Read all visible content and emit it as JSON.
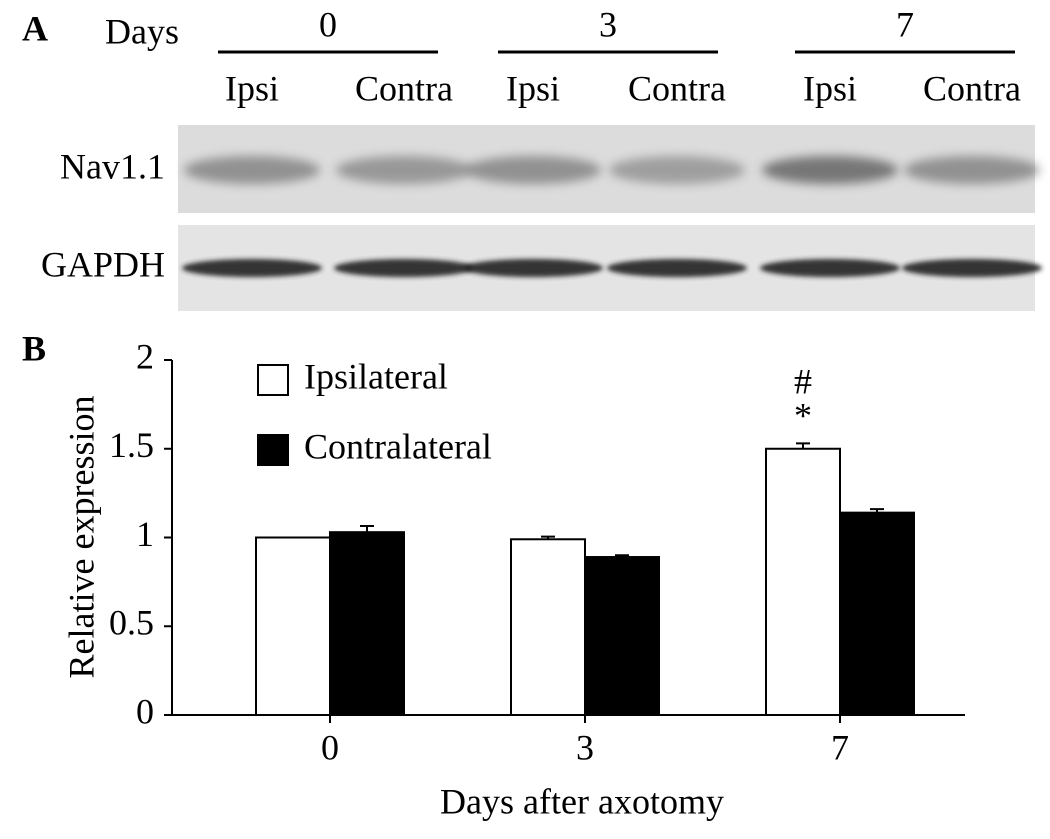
{
  "panel_a": {
    "label": "A",
    "days_label": "Days",
    "days": [
      "0",
      "3",
      "7"
    ],
    "lanes": [
      "Ipsi",
      "Contra",
      "Ipsi",
      "Contra",
      "Ipsi",
      "Contra"
    ],
    "rows": [
      "Nav1.1",
      "GAPDH"
    ]
  },
  "chart_data": {
    "type": "bar",
    "panel_label": "B",
    "ylabel": "Relative expression",
    "xlabel": "Days after axotomy",
    "categories": [
      "0",
      "3",
      "7"
    ],
    "series": [
      {
        "name": "Ipsilateral",
        "color": "#ffffff",
        "values": [
          1.0,
          0.99,
          1.5
        ],
        "errors": [
          0,
          0.015,
          0.03
        ]
      },
      {
        "name": "Contralateral",
        "color": "#000000",
        "values": [
          1.03,
          0.89,
          1.14
        ],
        "errors": [
          0.035,
          0.01,
          0.02
        ]
      }
    ],
    "ylim": [
      0,
      2
    ],
    "yticks": [
      0,
      0.5,
      1,
      1.5,
      2
    ],
    "grid": false,
    "annotations": [
      "#",
      "*"
    ]
  }
}
